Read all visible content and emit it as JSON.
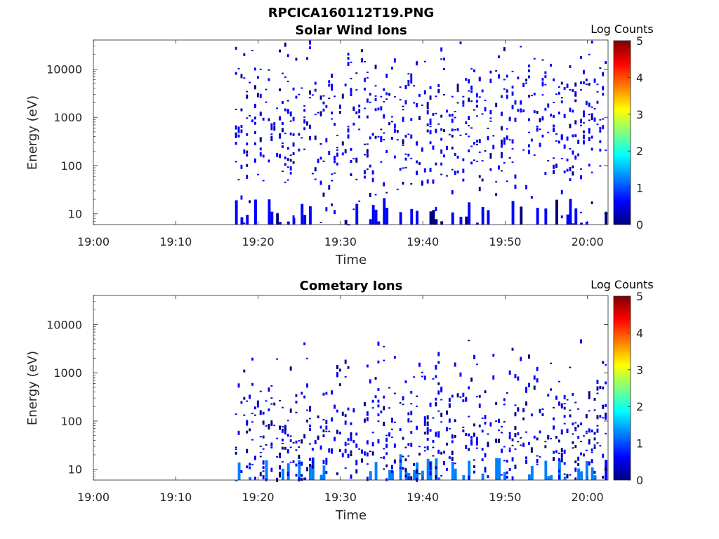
{
  "page_title": "RPCICA160112T19.PNG",
  "colormap": [
    "#00007f",
    "#0000ff",
    "#007fff",
    "#00ffff",
    "#7fff7f",
    "#ffff00",
    "#ff7f00",
    "#ff0000",
    "#7f0000"
  ],
  "chart_data": [
    {
      "type": "heatmap",
      "title": "Solar Wind Ions",
      "xlabel": "Time",
      "ylabel": "Energy (eV)",
      "xticks": [
        "19:00",
        "19:10",
        "19:20",
        "19:30",
        "19:40",
        "19:50",
        "20:00"
      ],
      "yticks": [
        "10",
        "100",
        "1000",
        "10000"
      ],
      "yscale": "log",
      "ylim": [
        6,
        40000
      ],
      "xlim_minutes": [
        0,
        62.5
      ],
      "data_start_minute": 17.2,
      "colorbar": {
        "label": "Log Counts",
        "ticks": [
          "0",
          "1",
          "2",
          "3",
          "4",
          "5"
        ],
        "range": [
          0,
          5
        ]
      },
      "band_low_log_counts": 0.25,
      "band_high_log_counts": 0.2,
      "log_energy_center": 2.85,
      "noise_seed": 7
    },
    {
      "type": "heatmap",
      "title": "Cometary Ions",
      "xlabel": "Time",
      "ylabel": "Energy (eV)",
      "xticks": [
        "19:00",
        "19:10",
        "19:20",
        "19:30",
        "19:40",
        "19:50",
        "20:00"
      ],
      "yticks": [
        "10",
        "100",
        "1000",
        "10000"
      ],
      "yscale": "log",
      "ylim": [
        6,
        40000
      ],
      "xlim_minutes": [
        0,
        62.5
      ],
      "data_start_minute": 17.2,
      "colorbar": {
        "label": "Log Counts",
        "ticks": [
          "0",
          "1",
          "2",
          "3",
          "4",
          "5"
        ],
        "range": [
          0,
          5
        ]
      },
      "band_low_log_counts": 0.9,
      "band_high_log_counts": 0.15,
      "log_energy_center": 1.6,
      "noise_seed": 19
    }
  ]
}
